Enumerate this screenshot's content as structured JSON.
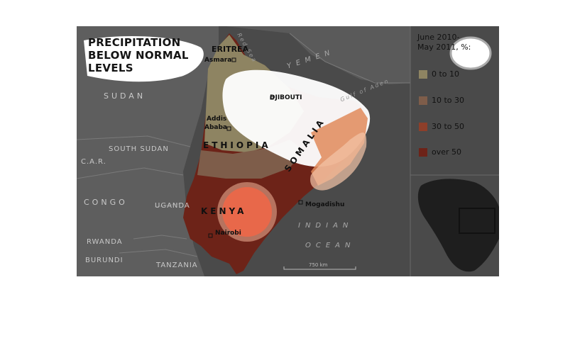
{
  "map": {
    "title_lines": [
      "PRECIPITATION",
      "BELOW NORMAL",
      "LEVELS"
    ],
    "countries": {
      "eritrea": "ERITREA",
      "ethiopia": "ETHIOPIA",
      "kenya": "KENYA",
      "somalia": "SOMALIA",
      "djibouti": "DJIBOUTI",
      "sudan": "SUDAN",
      "south_sudan": "SOUTH SUDAN",
      "car": "C.A.R.",
      "congo": "CONGO",
      "uganda": "UGANDA",
      "rwanda": "RWANDA",
      "burundi": "BURUNDI",
      "tanzania": "TANZANIA",
      "yemen": "YEMEN"
    },
    "cities": {
      "asmara": "Asmara",
      "addis": "Addis",
      "ababa": "Ababa",
      "mogadishu": "Mogadishu",
      "nairobi": "Nairobi"
    },
    "water": {
      "red_sea": "Red Sea",
      "gulf_of_aden": "Gulf of Aden",
      "indian": "INDIAN",
      "ocean": "OCEAN"
    },
    "scale_label": "750 km"
  },
  "legend": {
    "title_line1": "June 2010-",
    "title_line2": "May 2011, %:",
    "items": [
      {
        "label": "0 to 10",
        "color": "#8e8462"
      },
      {
        "label": "10 to 30",
        "color": "#7e5d4a"
      },
      {
        "label": "30 to 50",
        "color": "#8d3f2a"
      },
      {
        "label": "over 50",
        "color": "#6d2318"
      }
    ]
  }
}
